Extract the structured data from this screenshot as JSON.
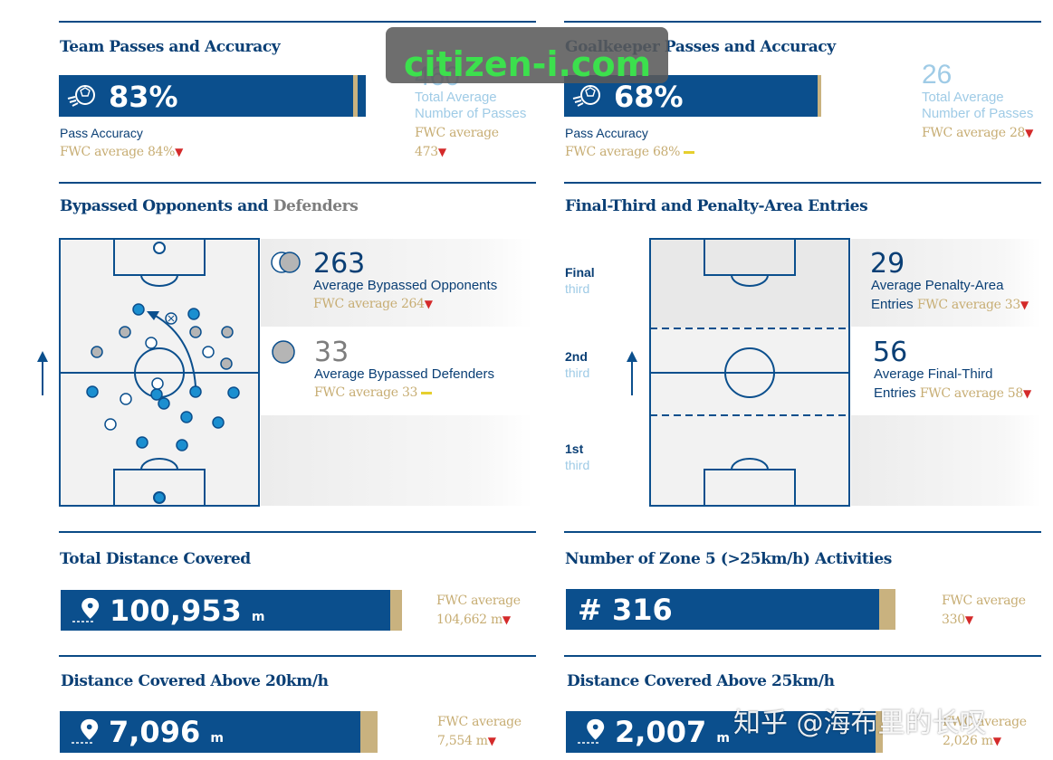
{
  "team_passes": {
    "title": "Team Passes and Accuracy",
    "accuracy_value": "83%",
    "accuracy_label": "Pass Accuracy",
    "accuracy_fwc": "FWC average 84%",
    "passes_value": "460",
    "passes_label_1": "Total Average",
    "passes_label_2": "Number of Passes",
    "passes_fwc_1": "FWC average",
    "passes_fwc_2": "473"
  },
  "watermark": {
    "text": "citizen-i.com"
  },
  "gk_passes": {
    "title": "Goalkeeper Passes and Accuracy",
    "accuracy_value": "68%",
    "accuracy_label": "Pass Accuracy",
    "accuracy_fwc": "FWC average 68%",
    "passes_value": "26",
    "passes_label_1": "Total Average",
    "passes_label_2": "Number of Passes",
    "passes_fwc": "FWC average 28"
  },
  "bypassed": {
    "title_main": "Bypassed Opponents and",
    "title_muted": "Defenders",
    "opponents_value": "263",
    "opponents_label": "Average Bypassed Opponents",
    "opponents_fwc": "FWC average 264",
    "defenders_value": "33",
    "defenders_label": "Average Bypassed Defenders",
    "defenders_fwc": "FWC average 33"
  },
  "entries": {
    "title": "Final-Third and Penalty-Area Entries",
    "final_1": "Final",
    "final_2": "third",
    "second_1": "2nd",
    "second_2": "third",
    "first_1": "1st",
    "first_2": "third",
    "penalty_value": "29",
    "penalty_label_1": "Average Penalty-Area",
    "penalty_label_2": "Entries",
    "penalty_fwc": "FWC average 33",
    "final_value": "56",
    "final_label_1": "Average Final-Third",
    "final_label_2": "Entries",
    "final_fwc": "FWC average 58"
  },
  "distance_total": {
    "title": "Total Distance Covered",
    "value": "100,953",
    "unit": "m",
    "fwc_1": "FWC average",
    "fwc_2": "104,662 m"
  },
  "zone5": {
    "title": "Number of Zone 5 (>25km/h) Activities",
    "value": "# 316",
    "fwc_1": "FWC average",
    "fwc_2": "330"
  },
  "distance_20": {
    "title": "Distance Covered Above 20km/h",
    "value": "7,096",
    "unit": "m",
    "fwc_1": "FWC average",
    "fwc_2": "7,554 m"
  },
  "distance_25": {
    "title": "Distance Covered Above 25km/h",
    "value": "2,007",
    "unit": "m",
    "fwc_1": "FWC average",
    "fwc_2": "2,026 m"
  },
  "credit": {
    "text": "知乎 @海布里的长叹"
  },
  "colors": {
    "navy": "#0b4f8d",
    "gold": "#c9b27f",
    "light_blue": "#9fcbe6",
    "red_arrow": "#d42a2a",
    "yellow_equal": "#e6cf2e"
  }
}
